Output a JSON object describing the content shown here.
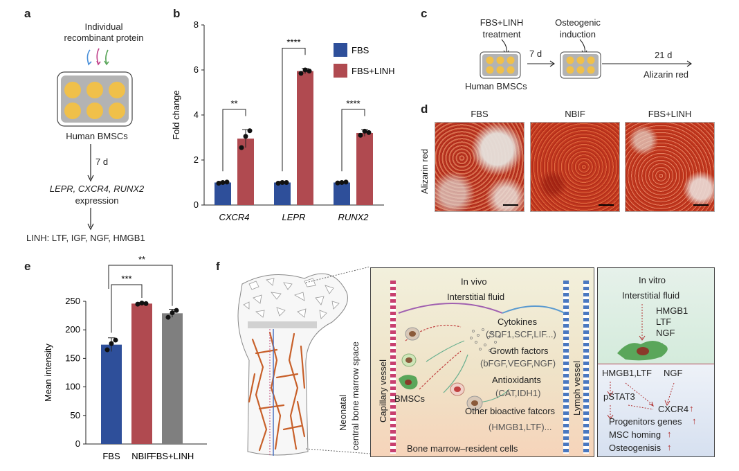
{
  "panel_a": {
    "label": "a",
    "line1": "Individual",
    "line2": "recombinant protein",
    "plate_label": "Human BMSCs",
    "duration": "7 d",
    "genes": "LEPR, CXCR4, RUNX2",
    "expression": "expression",
    "linh": "LINH: LTF, IGF, NGF, HMGB1"
  },
  "panel_c": {
    "label": "c",
    "treatment1": "FBS+LINH",
    "treatment2": "treatment",
    "induction1": "Osteogenic",
    "induction2": "induction",
    "plate_label": "Human BMSCs",
    "d7": "7 d",
    "d21": "21 d",
    "stain": "Alizarin red"
  },
  "panel_d": {
    "label": "d",
    "row_label": "Alizarin red",
    "columns": [
      "FBS",
      "NBIF",
      "FBS+LINH"
    ]
  },
  "panel_f": {
    "label": "f",
    "left_label1": "Neonatal",
    "left_label2": "central bone marrow space",
    "capillary": "Capillary vessel",
    "lymph": "Lymph vessel",
    "invivo": "In vivo",
    "interstitial": "Interstitial fluid",
    "cytokines": "Cytokines",
    "cytokines_list": "(SDF1,SCF,LIF...)",
    "growth": "Growth factors",
    "growth_list": "(bFGF,VEGF,NGF)",
    "antiox": "Antioxidants",
    "antiox_list": "(CAT,IDH1)",
    "other": "Other bioactive fatcors",
    "other_list": "(HMGB1,LTF)...",
    "bmscs": "BMSCs",
    "resident": "Bone marrow–resident cells",
    "invitro": "In vitro",
    "iv_fluid": "Interstitial fluid",
    "iv_f1": "HMGB1",
    "iv_f2": "LTF",
    "iv_f3": "NGF",
    "iv_f4": "...",
    "sig1": "HMGB1,LTF",
    "sig2": "NGF",
    "pstat3": "pSTAT3",
    "cxcr4": "CXCR4",
    "up": "↑",
    "prog": "Progenitors genes",
    "homing": "MSC homing",
    "osteo": "Osteogenisis"
  },
  "colors": {
    "fbs": "#2e4f9a",
    "linh": "#b04a50",
    "nbif": "#b04a50",
    "gray": "#7f7f7f",
    "well": "#f0c04a",
    "plate": "#b3b3b3"
  },
  "chart_data": [
    {
      "type": "bar",
      "panel": "b",
      "categories": [
        "CXCR4",
        "LEPR",
        "RUNX2"
      ],
      "series": [
        {
          "name": "FBS",
          "values": [
            1.0,
            1.0,
            1.0
          ],
          "errors": [
            0.05,
            0.05,
            0.05
          ]
        },
        {
          "name": "FBS+LINH",
          "values": [
            2.95,
            5.95,
            3.2
          ],
          "errors": [
            0.4,
            0.12,
            0.15
          ]
        }
      ],
      "points": [
        [
          [
            0.97,
            1.0,
            1.02
          ],
          [
            2.55,
            3.05,
            3.3
          ]
        ],
        [
          [
            0.97,
            1.0,
            1.0
          ],
          [
            5.85,
            6.0,
            5.95
          ]
        ],
        [
          [
            0.98,
            1.0,
            1.02
          ],
          [
            3.1,
            3.28,
            3.22
          ]
        ]
      ],
      "significance": [
        "**",
        "****",
        "****"
      ],
      "ylabel": "Fold change",
      "ylim": [
        0,
        8
      ],
      "yticks": [
        "0",
        "2",
        "4",
        "6",
        "8"
      ],
      "legend": "top-right"
    },
    {
      "type": "bar",
      "panel": "e",
      "categories": [
        "FBS",
        "NBIF",
        "FBS+LINH"
      ],
      "values": [
        174,
        246,
        229
      ],
      "errors": [
        12,
        2,
        7
      ],
      "points": [
        [
          165,
          176,
          182
        ],
        [
          245,
          247,
          246
        ],
        [
          222,
          230,
          234
        ]
      ],
      "significance": [
        {
          "pair": [
            "FBS",
            "NBIF"
          ],
          "label": "***"
        },
        {
          "pair": [
            "FBS",
            "FBS+LINH"
          ],
          "label": "**"
        }
      ],
      "ylabel": "Mean intensity",
      "ylim": [
        0,
        250
      ],
      "yticks": [
        "0",
        "50",
        "100",
        "150",
        "200",
        "250"
      ]
    }
  ]
}
